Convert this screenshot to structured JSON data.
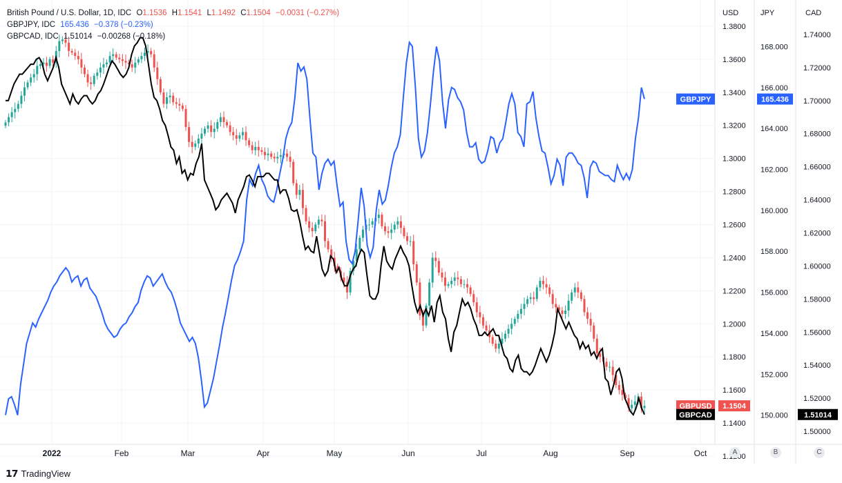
{
  "legend": {
    "gbpusd": {
      "name": "British Pound / U.S. Dollar, 1D, IDC",
      "o_label": "O",
      "o": "1.1536",
      "h_label": "H",
      "h": "1.1541",
      "l_label": "L",
      "l": "1.1492",
      "c_label": "C",
      "c": "1.1504",
      "chg": "−0.0031 (−0.27%)"
    },
    "gbpjpy": {
      "name": "GBPJPY, IDC",
      "last": "165.436",
      "chg": "−0.378 (−0.23%)"
    },
    "gbpcad": {
      "name": "GBPCAD, IDC",
      "last": "1.51014",
      "chg": "−0.00268 (−0.18%)"
    }
  },
  "footer": {
    "brand": "TradingView"
  },
  "scale_buttons": [
    "A",
    "B",
    "C"
  ],
  "colors": {
    "up": "#26a69a",
    "down": "#ef5350",
    "jpy": "#2962ff",
    "cad": "#000000",
    "grid": "#f0f3fa",
    "axis_text": "#131722"
  },
  "chart_data": {
    "type": "line",
    "title": "British Pound / U.S. Dollar, 1D, IDC",
    "x_ticks": [
      "2022",
      "Feb",
      "Mar",
      "Apr",
      "May",
      "Jun",
      "Jul",
      "Aug",
      "Sep",
      "Oct"
    ],
    "axes": {
      "usd": {
        "label": "USD",
        "min": 1.12,
        "max": 1.39,
        "ticks": [
          "1.3800",
          "1.3600",
          "1.3400",
          "1.3200",
          "1.3000",
          "1.2800",
          "1.2600",
          "1.2400",
          "1.2200",
          "1.2000",
          "1.1800",
          "1.1600",
          "1.1400",
          "1.1200"
        ]
      },
      "jpy": {
        "label": "JPY",
        "min": 148.0,
        "max": 169.8,
        "ticks": [
          "168.000",
          "166.000",
          "164.000",
          "162.000",
          "160.000",
          "158.000",
          "156.000",
          "154.000",
          "152.000",
          "150.000"
        ]
      },
      "cad": {
        "label": "CAD",
        "min": 1.485,
        "max": 1.755,
        "ticks": [
          "1.74000",
          "1.72000",
          "1.70000",
          "1.68000",
          "1.66000",
          "1.64000",
          "1.62000",
          "1.60000",
          "1.58000",
          "1.56000",
          "1.54000",
          "1.52000",
          "1.50000"
        ]
      }
    },
    "last_labels": {
      "gbpjpy": {
        "name": "GBPJPY",
        "value": "165.436",
        "v": 165.436
      },
      "gbpusd": {
        "name": "GBPUSD",
        "value": "1.1504",
        "v": 1.1504
      },
      "gbpcad": {
        "name": "GBPCAD",
        "value": "1.51014",
        "v": 1.51014
      }
    },
    "series": [
      {
        "name": "GBPUSD",
        "type": "candlestick",
        "axis": "usd",
        "close": [
          1.3218,
          1.325,
          1.328,
          1.33,
          1.333,
          1.338,
          1.343,
          1.346,
          1.349,
          1.351,
          1.356,
          1.357,
          1.358,
          1.356,
          1.36,
          1.358,
          1.365,
          1.371,
          1.372,
          1.37,
          1.365,
          1.364,
          1.362,
          1.36,
          1.355,
          1.351,
          1.346,
          1.345,
          1.35,
          1.352,
          1.355,
          1.357,
          1.358,
          1.362,
          1.363,
          1.361,
          1.36,
          1.359,
          1.358,
          1.357,
          1.355,
          1.358,
          1.36,
          1.362,
          1.364,
          1.365,
          1.363,
          1.355,
          1.348,
          1.34,
          1.333,
          1.337,
          1.338,
          1.334,
          1.333,
          1.332,
          1.33,
          1.319,
          1.31,
          1.307,
          1.309,
          1.312,
          1.315,
          1.318,
          1.32,
          1.316,
          1.318,
          1.322,
          1.325,
          1.322,
          1.32,
          1.316,
          1.314,
          1.312,
          1.314,
          1.316,
          1.311,
          1.308,
          1.305,
          1.307,
          1.305,
          1.304,
          1.302,
          1.303,
          1.301,
          1.3,
          1.301,
          1.302,
          1.303,
          1.301,
          1.298,
          1.285,
          1.278,
          1.281,
          1.27,
          1.262,
          1.258,
          1.256,
          1.26,
          1.263,
          1.262,
          1.25,
          1.245,
          1.24,
          1.235,
          1.232,
          1.228,
          1.225,
          1.219,
          1.232,
          1.238,
          1.245,
          1.252,
          1.257,
          1.26,
          1.26,
          1.262,
          1.264,
          1.266,
          1.259,
          1.256,
          1.255,
          1.257,
          1.26,
          1.262,
          1.258,
          1.253,
          1.25,
          1.25,
          1.236,
          1.225,
          1.205,
          1.199,
          1.211,
          1.225,
          1.24,
          1.238,
          1.231,
          1.228,
          1.223,
          1.224,
          1.226,
          1.228,
          1.227,
          1.224,
          1.224,
          1.222,
          1.218,
          1.213,
          1.207,
          1.204,
          1.199,
          1.196,
          1.192,
          1.188,
          1.185,
          1.188,
          1.191,
          1.194,
          1.197,
          1.2,
          1.203,
          1.206,
          1.209,
          1.212,
          1.215,
          1.216,
          1.215,
          1.222,
          1.226,
          1.224,
          1.222,
          1.218,
          1.212,
          1.21,
          1.208,
          1.206,
          1.208,
          1.214,
          1.219,
          1.222,
          1.219,
          1.215,
          1.207,
          1.203,
          1.199,
          1.191,
          1.182,
          1.18,
          1.177,
          1.174,
          1.174,
          1.169,
          1.163,
          1.16,
          1.157,
          1.155,
          1.149,
          1.151,
          1.153,
          1.156,
          1.149,
          1.1504
        ]
      },
      {
        "name": "GBPJPY",
        "axis": "jpy",
        "color": "#2962ff",
        "y": [
          150.0,
          150.8,
          150.9,
          150.5,
          150.0,
          151.5,
          152.5,
          153.5,
          154.0,
          154.5,
          154.3,
          154.7,
          155.0,
          155.3,
          155.6,
          156.0,
          156.3,
          156.5,
          156.8,
          157.0,
          157.2,
          157.0,
          156.5,
          156.7,
          156.8,
          156.3,
          156.6,
          156.7,
          156.2,
          156.0,
          155.8,
          155.4,
          155.0,
          154.5,
          154.2,
          154.0,
          153.8,
          153.9,
          154.2,
          154.4,
          154.5,
          154.8,
          155.0,
          155.3,
          155.5,
          156.1,
          156.5,
          156.8,
          156.7,
          156.3,
          156.5,
          156.7,
          156.9,
          156.5,
          156.2,
          156.0,
          155.6,
          155.1,
          154.5,
          154.2,
          153.9,
          153.6,
          153.8,
          153.5,
          152.8,
          151.7,
          150.4,
          150.6,
          151.2,
          151.8,
          152.6,
          153.4,
          154.3,
          155.0,
          155.8,
          156.6,
          157.3,
          157.6,
          158.0,
          158.5,
          160.5,
          161.5,
          161.2,
          161.8,
          162.2,
          161.5,
          161.2,
          160.7,
          160.5,
          160.4,
          161.0,
          161.8,
          162.5,
          163.5,
          164.0,
          164.3,
          165.5,
          167.2,
          166.8,
          167.0,
          166.4,
          164.5,
          162.8,
          162.6,
          161.0,
          161.8,
          162.3,
          162.5,
          162.2,
          162.4,
          161.2,
          160.2,
          160.4,
          158.5,
          157.6,
          157.4,
          158.0,
          159.5,
          161.1,
          160.2,
          158.3,
          157.7,
          158.2,
          160.0,
          161.0,
          160.3,
          160.5,
          161.2,
          162.1,
          162.8,
          163.1,
          163.7,
          165.5,
          167.2,
          168.2,
          168.0,
          166.0,
          163.5,
          162.6,
          162.9,
          163.8,
          165.2,
          166.8,
          168.0,
          167.3,
          165.3,
          164.0,
          165.4,
          166.0,
          165.9,
          165.5,
          165.3,
          164.9,
          163.8,
          163.1,
          163.1,
          163.3,
          162.5,
          162.3,
          162.4,
          162.9,
          163.6,
          163.5,
          162.8,
          163.3,
          163.5,
          164.3,
          165.2,
          165.7,
          165.2,
          163.8,
          163.6,
          163.1,
          165.2,
          165.3,
          165.8,
          164.5,
          163.6,
          162.9,
          162.8,
          162.1,
          161.3,
          161.7,
          162.5,
          162.2,
          161.2,
          162.6,
          162.8,
          162.8,
          162.6,
          162.3,
          162.2,
          161.6,
          160.6,
          162.1,
          162.4,
          162.3,
          161.9,
          161.8,
          161.7,
          161.7,
          161.5,
          161.4,
          162.2,
          161.8,
          161.5,
          161.8,
          161.5,
          162.0,
          163.5,
          164.5,
          166.0,
          165.436
        ]
      },
      {
        "name": "GBPCAD",
        "axis": "cad",
        "color": "#000000",
        "y": [
          1.7,
          1.7,
          1.705,
          1.71,
          1.713,
          1.716,
          1.716,
          1.718,
          1.72,
          1.722,
          1.722,
          1.725,
          1.726,
          1.723,
          1.716,
          1.712,
          1.716,
          1.72,
          1.726,
          1.72,
          1.71,
          1.706,
          1.702,
          1.698,
          1.704,
          1.7,
          1.698,
          1.701,
          1.703,
          1.703,
          1.7,
          1.698,
          1.7,
          1.704,
          1.706,
          1.71,
          1.715,
          1.72,
          1.724,
          1.722,
          1.719,
          1.716,
          1.714,
          1.716,
          1.72,
          1.728,
          1.733,
          1.735,
          1.738,
          1.738,
          1.733,
          1.722,
          1.71,
          1.702,
          1.7,
          1.695,
          1.688,
          1.685,
          1.679,
          1.672,
          1.67,
          1.662,
          1.666,
          1.656,
          1.658,
          1.652,
          1.656,
          1.655,
          1.662,
          1.666,
          1.674,
          1.652,
          1.648,
          1.644,
          1.64,
          1.634,
          1.636,
          1.64,
          1.642,
          1.644,
          1.641,
          1.638,
          1.632,
          1.64,
          1.644,
          1.648,
          1.654,
          1.655,
          1.652,
          1.648,
          1.654,
          1.654,
          1.654,
          1.656,
          1.656,
          1.654,
          1.652,
          1.652,
          1.644,
          1.646,
          1.646,
          1.641,
          1.634,
          1.633,
          1.634,
          1.627,
          1.618,
          1.61,
          1.612,
          1.609,
          1.608,
          1.618,
          1.608,
          1.598,
          1.594,
          1.597,
          1.606,
          1.604,
          1.596,
          1.599,
          1.592,
          1.588,
          1.588,
          1.594,
          1.598,
          1.6,
          1.606,
          1.61,
          1.608,
          1.594,
          1.582,
          1.58,
          1.58,
          1.584,
          1.6,
          1.612,
          1.603,
          1.6,
          1.598,
          1.604,
          1.608,
          1.612,
          1.608,
          1.605,
          1.6,
          1.588,
          1.578,
          1.572,
          1.576,
          1.57,
          1.574,
          1.57,
          1.576,
          1.566,
          1.578,
          1.582,
          1.572,
          1.568,
          1.556,
          1.548,
          1.56,
          1.564,
          1.572,
          1.58,
          1.576,
          1.578,
          1.574,
          1.568,
          1.564,
          1.558,
          1.558,
          1.56,
          1.558,
          1.56,
          1.562,
          1.558,
          1.558,
          1.552,
          1.546,
          1.544,
          1.538,
          1.536,
          1.543,
          1.546,
          1.538,
          1.536,
          1.536,
          1.534,
          1.536,
          1.54,
          1.545,
          1.55,
          1.546,
          1.542,
          1.546,
          1.552,
          1.56,
          1.574,
          1.57,
          1.566,
          1.562,
          1.566,
          1.562,
          1.558,
          1.556,
          1.55,
          1.554,
          1.55,
          1.552,
          1.546,
          1.548,
          1.544,
          1.548,
          1.55,
          1.532,
          1.53,
          1.522,
          1.528,
          1.536,
          1.538,
          1.532,
          1.52,
          1.516,
          1.512,
          1.51,
          1.514,
          1.52,
          1.514,
          1.51014
        ]
      }
    ]
  }
}
